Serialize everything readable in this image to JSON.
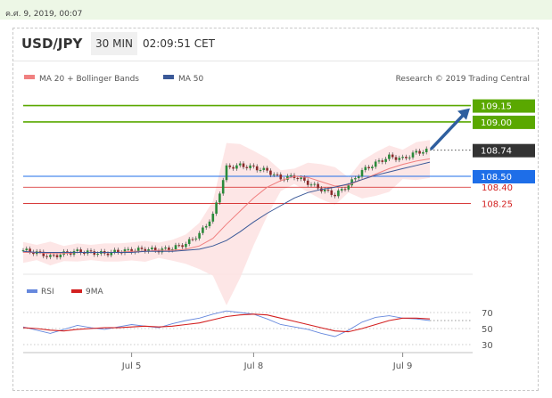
{
  "top_date": "ค.ศ. 9, 2019, 00:07",
  "header": {
    "symbol": "USD/JPY",
    "timeframe": "30 MIN",
    "clock": "02:09:51 CET"
  },
  "legend": {
    "ma20": "MA 20 + Bollinger Bands",
    "ma50": "MA 50",
    "rsi": "RSI",
    "rsi_ma": "9MA",
    "credit": "Research © 2019 Trading Central"
  },
  "colors": {
    "ma20": "#f08080",
    "ma50": "#3b5998",
    "band_fill": "#fde2e2",
    "target_green": "#5aa800",
    "pivot_blue": "#1e6ee8",
    "support_red": "#d32020",
    "arrow": "#2f5f9f",
    "rsi_line": "#6688dd",
    "rsi_ma_line": "#d32020"
  },
  "chart_data": [
    {
      "type": "line",
      "title": "USD/JPY",
      "timeframe": "30 MIN",
      "x_tick_labels": [
        "Jul 5",
        "Jul 8",
        "Jul 9"
      ],
      "ylim": [
        107.65,
        109.22
      ],
      "price_levels": [
        {
          "value": 109.15,
          "label": "109.15",
          "kind": "target"
        },
        {
          "value": 109.0,
          "label": "109.00",
          "kind": "target"
        },
        {
          "value": 108.74,
          "label": "108.74",
          "kind": "last_price"
        },
        {
          "value": 108.5,
          "label": "108.50",
          "kind": "pivot"
        },
        {
          "value": 108.4,
          "label": "108.40",
          "kind": "support"
        },
        {
          "value": 108.25,
          "label": "108.25",
          "kind": "support"
        }
      ],
      "series": [
        {
          "name": "USD/JPY",
          "kind": "candlestick_close",
          "values": [
            107.82,
            107.8,
            107.76,
            107.79,
            107.81,
            107.8,
            107.79,
            107.81,
            107.82,
            107.83,
            107.82,
            107.84,
            107.88,
            107.97,
            108.14,
            108.58,
            108.6,
            108.58,
            108.55,
            108.48,
            108.5,
            108.44,
            108.38,
            108.33,
            108.42,
            108.55,
            108.62,
            108.68,
            108.66,
            108.72,
            108.74
          ]
        },
        {
          "name": "MA 20",
          "values": [
            107.8,
            107.8,
            107.79,
            107.79,
            107.8,
            107.8,
            107.8,
            107.8,
            107.81,
            107.81,
            107.82,
            107.82,
            107.83,
            107.86,
            107.93,
            108.06,
            108.18,
            108.3,
            108.4,
            108.46,
            108.5,
            108.49,
            108.45,
            108.41,
            108.42,
            108.47,
            108.52,
            108.57,
            108.61,
            108.64,
            108.66
          ]
        },
        {
          "name": "MA 50",
          "values": [
            107.81,
            107.8,
            107.8,
            107.8,
            107.8,
            107.8,
            107.8,
            107.8,
            107.8,
            107.81,
            107.81,
            107.81,
            107.82,
            107.83,
            107.86,
            107.91,
            107.99,
            108.08,
            108.16,
            108.23,
            108.3,
            108.35,
            108.38,
            108.4,
            108.43,
            108.47,
            108.51,
            108.54,
            108.57,
            108.6,
            108.63
          ]
        }
      ]
    },
    {
      "type": "line",
      "y_tick_labels": [
        "70",
        "50",
        "30"
      ],
      "ylim": [
        25,
        80
      ],
      "series": [
        {
          "name": "RSI",
          "values": [
            52,
            48,
            44,
            49,
            54,
            51,
            49,
            52,
            55,
            53,
            51,
            56,
            60,
            63,
            68,
            72,
            70,
            68,
            62,
            55,
            52,
            49,
            44,
            40,
            48,
            58,
            64,
            66,
            63,
            62,
            60
          ]
        },
        {
          "name": "9MA",
          "values": [
            51,
            50,
            48,
            47,
            49,
            50,
            51,
            51,
            52,
            53,
            52,
            53,
            55,
            57,
            61,
            65,
            67,
            68,
            67,
            63,
            59,
            55,
            51,
            47,
            46,
            50,
            55,
            60,
            63,
            63,
            62
          ]
        }
      ]
    }
  ]
}
